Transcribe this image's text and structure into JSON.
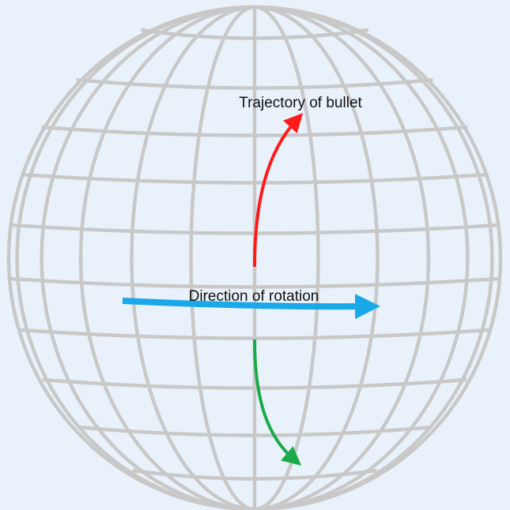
{
  "labels": {
    "trajectory": "Trajectory of bullet",
    "rotation": "Direction of rotation"
  }
}
